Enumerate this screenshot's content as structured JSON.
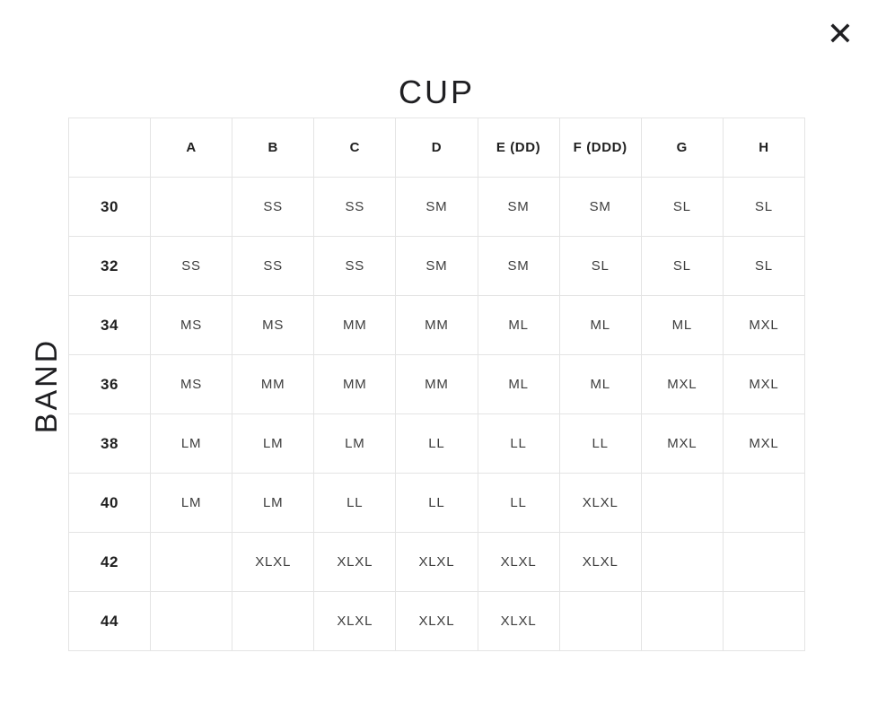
{
  "modal": {
    "close_icon": "✕"
  },
  "axes": {
    "cup_label": "CUP",
    "band_label": "BAND"
  },
  "size_table": {
    "columns": [
      "A",
      "B",
      "C",
      "D",
      "E (DD)",
      "F (DDD)",
      "G",
      "H"
    ],
    "rows": [
      {
        "band": "30",
        "cells": [
          "",
          "SS",
          "SS",
          "SM",
          "SM",
          "SM",
          "SL",
          "SL"
        ]
      },
      {
        "band": "32",
        "cells": [
          "SS",
          "SS",
          "SS",
          "SM",
          "SM",
          "SL",
          "SL",
          "SL"
        ]
      },
      {
        "band": "34",
        "cells": [
          "MS",
          "MS",
          "MM",
          "MM",
          "ML",
          "ML",
          "ML",
          "MXL"
        ]
      },
      {
        "band": "36",
        "cells": [
          "MS",
          "MM",
          "MM",
          "MM",
          "ML",
          "ML",
          "MXL",
          "MXL"
        ]
      },
      {
        "band": "38",
        "cells": [
          "LM",
          "LM",
          "LM",
          "LL",
          "LL",
          "LL",
          "MXL",
          "MXL"
        ]
      },
      {
        "band": "40",
        "cells": [
          "LM",
          "LM",
          "LL",
          "LL",
          "LL",
          "XLXL",
          "",
          ""
        ]
      },
      {
        "band": "42",
        "cells": [
          "",
          "XLXL",
          "XLXL",
          "XLXL",
          "XLXL",
          "XLXL",
          "",
          ""
        ]
      },
      {
        "band": "44",
        "cells": [
          "",
          "",
          "XLXL",
          "XLXL",
          "XLXL",
          "",
          "",
          ""
        ]
      }
    ]
  },
  "colors": {
    "background": "#ffffff",
    "ink": "#1f1f22",
    "header_text": "#1f1f1f",
    "cell_text": "#3d3d3d",
    "border": "#e4e4e4"
  }
}
